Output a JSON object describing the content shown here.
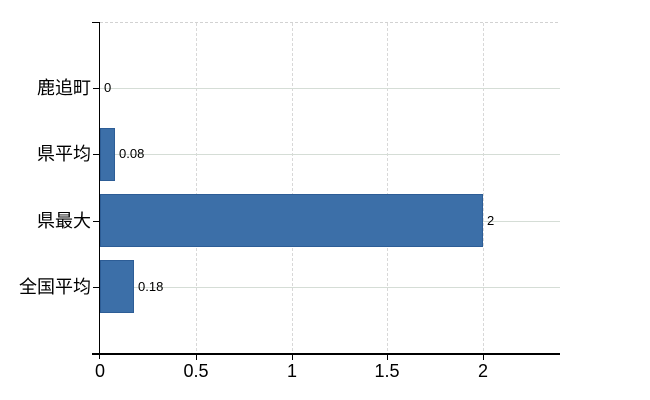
{
  "chart_data": {
    "type": "bar",
    "orientation": "horizontal",
    "title": "",
    "xlabel": "",
    "ylabel": "",
    "categories": [
      "鹿追町",
      "県平均",
      "県最大",
      "全国平均"
    ],
    "values": [
      0,
      0.08,
      2,
      0.18
    ],
    "value_labels": [
      "0",
      "0.08",
      "2",
      "0.18"
    ],
    "x_ticks": [
      0,
      0.5,
      1,
      1.5,
      2
    ],
    "x_tick_labels": [
      "0",
      "0.5",
      "1",
      "1.5",
      "2"
    ],
    "xlim": [
      0,
      2.4
    ],
    "grid": "on",
    "legend": "none",
    "colors": {
      "bar_fill": "#3c6fa8",
      "bar_border": "#2d5d96",
      "horizontal_gridline": "#d5ddd6",
      "vertical_gridline": "#d8d8d8",
      "plot_top_border": "#d2d2d2",
      "axis": "#000000",
      "text": "#000000",
      "background": "#ffffff"
    }
  }
}
